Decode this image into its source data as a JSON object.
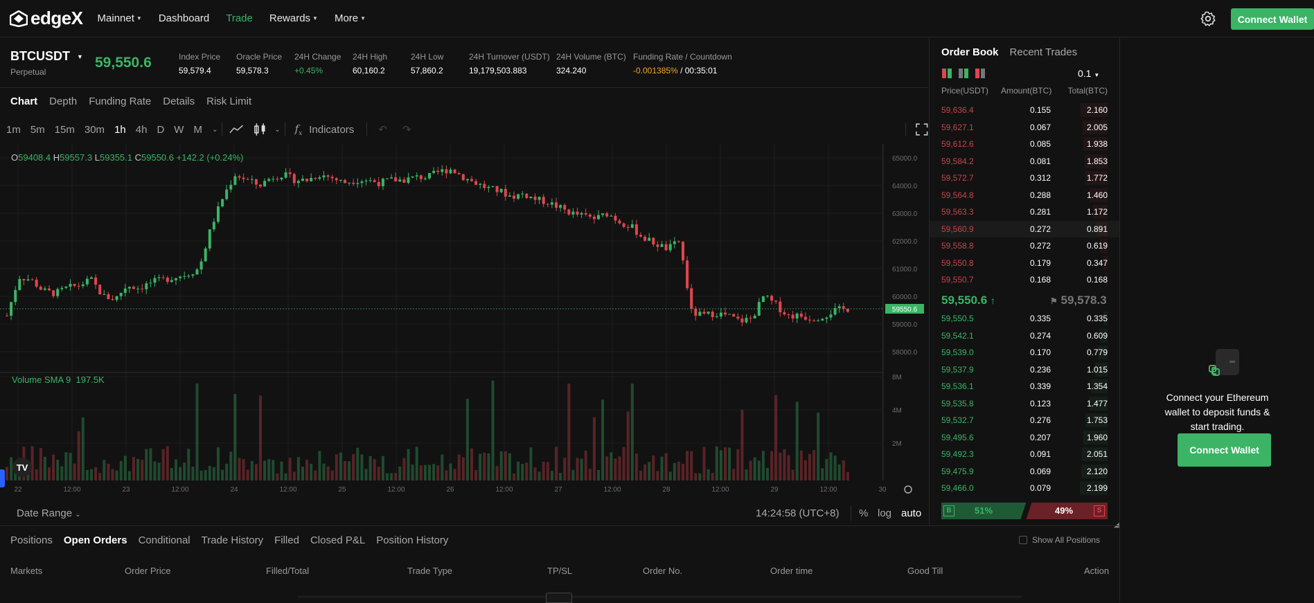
{
  "nav": {
    "logo": "edgeX",
    "items": [
      {
        "label": "Mainnet",
        "dropdown": true,
        "active": false
      },
      {
        "label": "Dashboard",
        "dropdown": false,
        "active": false
      },
      {
        "label": "Trade",
        "dropdown": false,
        "active": true
      },
      {
        "label": "Rewards",
        "dropdown": true,
        "active": false
      },
      {
        "label": "More",
        "dropdown": true,
        "active": false
      }
    ],
    "connect_label": "Connect Wallet"
  },
  "ticker": {
    "symbol": "BTCUSDT",
    "type": "Perpetual",
    "price": "59,550.6",
    "stats": [
      {
        "label": "Index Price",
        "value": "59,579.4",
        "color": "white"
      },
      {
        "label": "Oracle Price",
        "value": "59,578.3",
        "color": "white"
      },
      {
        "label": "24H Change",
        "value": "+0.45%",
        "color": "green"
      },
      {
        "label": "24H High",
        "value": "60,160.2",
        "color": "white"
      },
      {
        "label": "24H Low",
        "value": "57,860.2",
        "color": "white"
      },
      {
        "label": "24H Turnover (USDT)",
        "value": "19,179,503.883",
        "color": "white"
      },
      {
        "label": "24H Volume (BTC)",
        "value": "324.240",
        "color": "white"
      }
    ],
    "funding_label": "Funding Rate / Countdown",
    "funding_rate": "-0.001385%",
    "funding_countdown": "/ 00:35:01"
  },
  "chart_tabs": [
    "Chart",
    "Depth",
    "Funding Rate",
    "Details",
    "Risk Limit"
  ],
  "timeframes": [
    "1m",
    "5m",
    "15m",
    "30m",
    "1h",
    "4h",
    "D",
    "W",
    "M"
  ],
  "active_timeframe": "1h",
  "indicators_label": "Indicators",
  "ohlc": {
    "o_label": "O",
    "o": "59408.4",
    "h_label": "H",
    "h": "59557.3",
    "l_label": "L",
    "l": "59355.1",
    "c_label": "C",
    "c": "59550.6",
    "change": "+142.2 (+0.24%)"
  },
  "volume_legend": {
    "label": "Volume SMA 9",
    "value": "197.5K"
  },
  "tv_logo": "TV",
  "chart_data": {
    "type": "candlestick",
    "price_ticks": [
      "65000.0",
      "64000.0",
      "63000.0",
      "62000.0",
      "61000.0",
      "60000.0",
      "59000.0",
      "58000.0"
    ],
    "volume_ticks": [
      "8M",
      "4M",
      "2M"
    ],
    "x_ticks": [
      "22",
      "12:00",
      "23",
      "12:00",
      "24",
      "12:00",
      "25",
      "12:00",
      "26",
      "12:00",
      "27",
      "12:00",
      "28",
      "12:00",
      "29",
      "12:00",
      "30"
    ],
    "last_price_label": "59550.6",
    "ylim": [
      57500,
      65300
    ],
    "close_path": [
      59300,
      60700,
      60600,
      60200,
      60100,
      60300,
      60400,
      60600,
      60000,
      59900,
      60400,
      60300,
      60500,
      60600,
      60700,
      60800,
      61000,
      62500,
      63600,
      64400,
      64200,
      64000,
      64300,
      64400,
      64200,
      64200,
      64400,
      64300,
      64100,
      64200,
      64200,
      64100,
      64200,
      64200,
      64300,
      64300,
      64500,
      64600,
      64300,
      64100,
      63900,
      63800,
      63600,
      63700,
      63500,
      63400,
      63200,
      63000,
      62900,
      62800,
      63000,
      62700,
      62500,
      62100,
      61900,
      61700,
      62000,
      59400,
      59300,
      59400,
      59300,
      59100,
      59200,
      60000,
      59700,
      59300,
      59300,
      59200,
      59300,
      59500,
      59550
    ]
  },
  "bottom": {
    "date_range": "Date Range",
    "time": "14:24:58 (UTC+8)",
    "pct": "%",
    "log": "log",
    "auto": "auto"
  },
  "orderbook": {
    "tabs": [
      "Order Book",
      "Recent Trades"
    ],
    "precision": "0.1",
    "headers": [
      "Price(USDT)",
      "Amount(BTC)",
      "Total(BTC)"
    ],
    "asks": [
      [
        "59,636.4",
        "0.155",
        "2.160"
      ],
      [
        "59,627.1",
        "0.067",
        "2.005"
      ],
      [
        "59,612.6",
        "0.085",
        "1.938"
      ],
      [
        "59,584.2",
        "0.081",
        "1.853"
      ],
      [
        "59,572.7",
        "0.312",
        "1.772"
      ],
      [
        "59,564.8",
        "0.288",
        "1.460"
      ],
      [
        "59,563.3",
        "0.281",
        "1.172"
      ],
      [
        "59,560.9",
        "0.272",
        "0.891"
      ],
      [
        "59,558.8",
        "0.272",
        "0.619"
      ],
      [
        "59,550.8",
        "0.179",
        "0.347"
      ],
      [
        "59,550.7",
        "0.168",
        "0.168"
      ]
    ],
    "mid_price": "59,550.6",
    "oracle_price": "59,578.3",
    "bids": [
      [
        "59,550.5",
        "0.335",
        "0.335"
      ],
      [
        "59,542.1",
        "0.274",
        "0.609"
      ],
      [
        "59,539.0",
        "0.170",
        "0.779"
      ],
      [
        "59,537.9",
        "0.236",
        "1.015"
      ],
      [
        "59,536.1",
        "0.339",
        "1.354"
      ],
      [
        "59,535.8",
        "0.123",
        "1.477"
      ],
      [
        "59,532.7",
        "0.276",
        "1.753"
      ],
      [
        "59,495.6",
        "0.207",
        "1.960"
      ],
      [
        "59,492.3",
        "0.091",
        "2.051"
      ],
      [
        "59,475.9",
        "0.069",
        "2.120"
      ],
      [
        "59,466.0",
        "0.079",
        "2.199"
      ]
    ],
    "buy_label": "B",
    "buy_pct": "51%",
    "sell_pct": "49%",
    "sell_label": "S",
    "buy_share": 0.51
  },
  "side_panel": {
    "text": "Connect your Ethereum wallet to deposit funds & start trading.",
    "button": "Connect Wallet"
  },
  "orders": {
    "tabs": [
      "Positions",
      "Open Orders",
      "Conditional",
      "Trade History",
      "Filled",
      "Closed P&L",
      "Position History"
    ],
    "active_tab": "Open Orders",
    "show_all": "Show All Positions",
    "columns": [
      "Markets",
      "Order Price",
      "Filled/Total",
      "Trade Type",
      "TP/SL",
      "Order No.",
      "Order time",
      "Good Till",
      "Action"
    ]
  },
  "colors": {
    "green": "#3bb466",
    "red": "#e0454e",
    "bg": "#121212"
  }
}
